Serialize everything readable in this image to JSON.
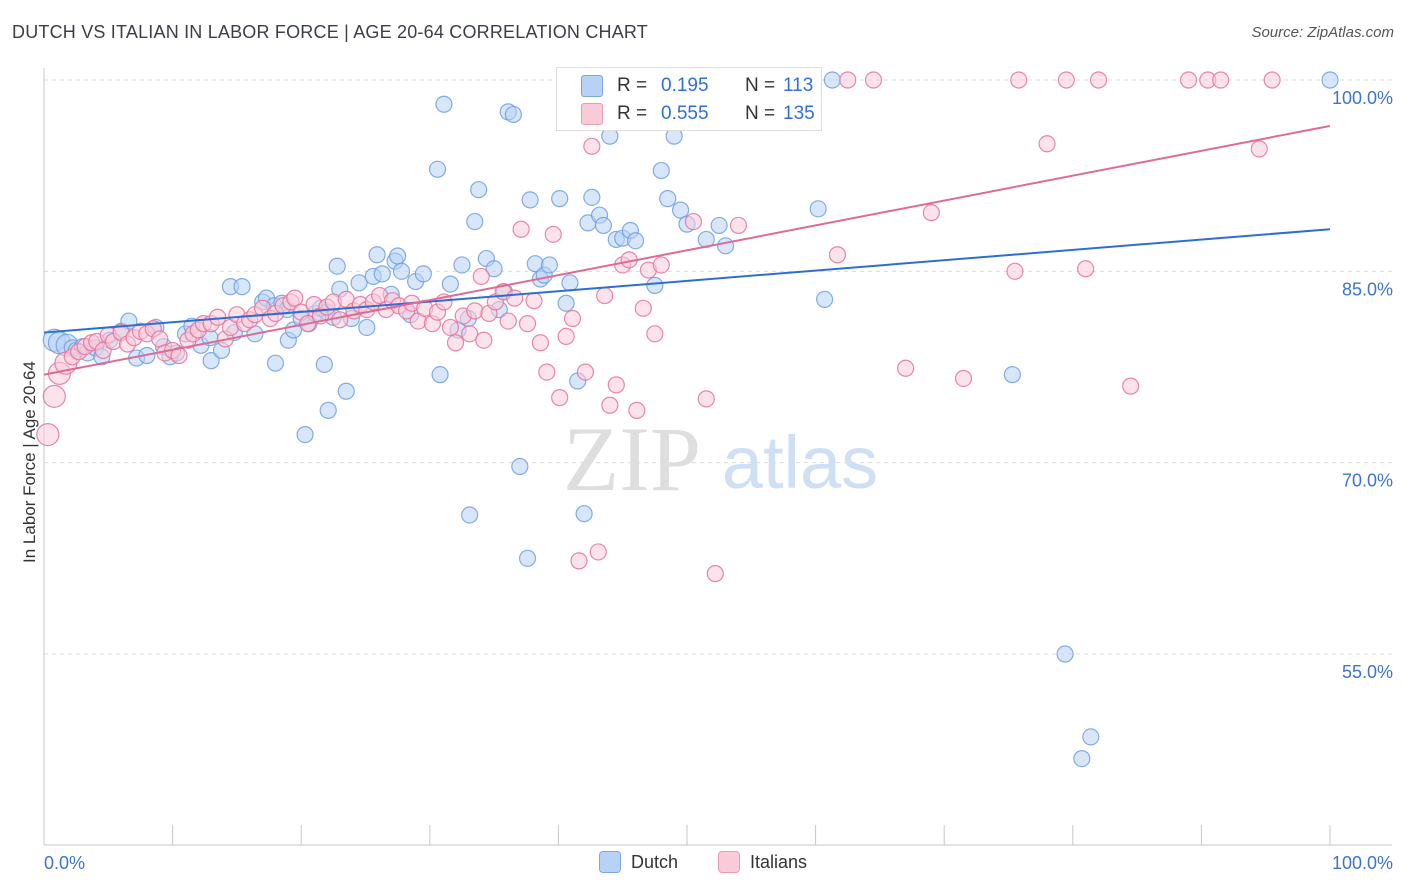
{
  "title": "DUTCH VS ITALIAN IN LABOR FORCE | AGE 20-64 CORRELATION CHART",
  "source": "Source: ZipAtlas.com",
  "watermark": {
    "zip": "ZIP",
    "atlas": "atlas"
  },
  "stats": [
    {
      "r_label": "R =",
      "r_value": "0.195",
      "n_label": "N =",
      "n_value": "113",
      "color": "#a8c6f0",
      "border": "#6e9fe0"
    },
    {
      "r_label": "R =",
      "r_value": "0.555",
      "n_label": "N =",
      "n_value": "135",
      "color": "#f7bfd0",
      "border": "#e88fac"
    }
  ],
  "legend": [
    {
      "label": "Dutch",
      "color": "#b8d2f5",
      "border": "#7aa8e6"
    },
    {
      "label": "Italians",
      "color": "#f9cbd9",
      "border": "#eb9db6"
    }
  ],
  "chart_data": {
    "type": "scatter",
    "title": "DUTCH VS ITALIAN IN LABOR FORCE | AGE 20-64 CORRELATION CHART",
    "xlabel": "",
    "ylabel": "In Labor Force | Age 20-64",
    "xlim": [
      0,
      100
    ],
    "ylim": [
      40,
      101
    ],
    "x_tick_labels": [
      "0.0%",
      "100.0%"
    ],
    "y_ticks": [
      55,
      70,
      85,
      100
    ],
    "y_tick_labels": [
      "55.0%",
      "70.0%",
      "85.0%",
      "100.0%"
    ],
    "grid": true,
    "legend_position": "bottom",
    "series": [
      {
        "name": "Dutch",
        "color": "#6e9fe0",
        "fill": "#b8d2f5",
        "trend": {
          "x": [
            0,
            100
          ],
          "y": [
            80.2,
            88.3
          ]
        },
        "points": [
          [
            0.8,
            79.6
          ],
          [
            1.2,
            79.4
          ],
          [
            1.8,
            79.2
          ],
          [
            2.2,
            79.0
          ],
          [
            2.5,
            78.8
          ],
          [
            3.0,
            79.1
          ],
          [
            3.4,
            78.6
          ],
          [
            4.0,
            79.0
          ],
          [
            4.5,
            78.3
          ],
          [
            5.1,
            79.6
          ],
          [
            6.0,
            80.3
          ],
          [
            6.6,
            81.1
          ],
          [
            7.2,
            78.2
          ],
          [
            8.0,
            78.4
          ],
          [
            8.7,
            80.6
          ],
          [
            9.3,
            79.1
          ],
          [
            9.8,
            78.3
          ],
          [
            10.3,
            78.6
          ],
          [
            11.0,
            80.1
          ],
          [
            11.5,
            80.7
          ],
          [
            12.2,
            79.2
          ],
          [
            12.9,
            79.8
          ],
          [
            13.0,
            78.0
          ],
          [
            13.8,
            78.8
          ],
          [
            14.5,
            83.8
          ],
          [
            14.8,
            80.2
          ],
          [
            15.4,
            83.8
          ],
          [
            16.4,
            80.1
          ],
          [
            17.0,
            82.6
          ],
          [
            17.3,
            82.9
          ],
          [
            17.9,
            82.3
          ],
          [
            18.0,
            77.8
          ],
          [
            18.5,
            82.5
          ],
          [
            18.9,
            82.0
          ],
          [
            19.0,
            79.6
          ],
          [
            19.4,
            80.4
          ],
          [
            20.0,
            81.3
          ],
          [
            20.3,
            72.2
          ],
          [
            20.6,
            80.9
          ],
          [
            21.1,
            81.7
          ],
          [
            22.0,
            81.8
          ],
          [
            21.5,
            82.1
          ],
          [
            21.8,
            77.7
          ],
          [
            22.1,
            74.1
          ],
          [
            22.8,
            85.4
          ],
          [
            22.5,
            81.4
          ],
          [
            23.0,
            83.6
          ],
          [
            23.5,
            75.6
          ],
          [
            23.9,
            81.3
          ],
          [
            24.5,
            84.1
          ],
          [
            25.1,
            80.6
          ],
          [
            25.6,
            84.6
          ],
          [
            25.9,
            86.3
          ],
          [
            26.3,
            84.8
          ],
          [
            27.0,
            83.2
          ],
          [
            27.3,
            85.8
          ],
          [
            27.5,
            86.2
          ],
          [
            27.8,
            85.0
          ],
          [
            28.5,
            81.6
          ],
          [
            28.9,
            84.2
          ],
          [
            29.5,
            84.8
          ],
          [
            30.6,
            93.0
          ],
          [
            30.8,
            76.9
          ],
          [
            31.1,
            98.1
          ],
          [
            31.6,
            84.0
          ],
          [
            32.2,
            80.4
          ],
          [
            32.5,
            85.5
          ],
          [
            33.0,
            81.3
          ],
          [
            33.1,
            65.9
          ],
          [
            33.5,
            88.9
          ],
          [
            33.8,
            91.4
          ],
          [
            34.4,
            86.0
          ],
          [
            35.0,
            85.2
          ],
          [
            35.4,
            82.0
          ],
          [
            35.8,
            83.4
          ],
          [
            36.1,
            97.5
          ],
          [
            36.5,
            97.3
          ],
          [
            37.0,
            69.7
          ],
          [
            37.6,
            62.5
          ],
          [
            37.8,
            90.6
          ],
          [
            38.2,
            85.6
          ],
          [
            38.6,
            84.4
          ],
          [
            38.9,
            84.7
          ],
          [
            39.3,
            85.5
          ],
          [
            40.1,
            90.7
          ],
          [
            40.6,
            82.5
          ],
          [
            40.9,
            84.1
          ],
          [
            41.5,
            76.4
          ],
          [
            42.0,
            66.0
          ],
          [
            42.3,
            88.8
          ],
          [
            42.6,
            90.8
          ],
          [
            43.2,
            89.4
          ],
          [
            43.5,
            88.6
          ],
          [
            44.0,
            95.6
          ],
          [
            44.5,
            87.5
          ],
          [
            45.0,
            87.6
          ],
          [
            45.6,
            88.2
          ],
          [
            46.0,
            87.4
          ],
          [
            47.5,
            83.9
          ],
          [
            48.0,
            92.9
          ],
          [
            48.5,
            90.7
          ],
          [
            49.0,
            95.6
          ],
          [
            49.5,
            89.8
          ],
          [
            50.0,
            88.7
          ],
          [
            51.5,
            87.5
          ],
          [
            52.5,
            88.6
          ],
          [
            53.0,
            87.0
          ],
          [
            60.2,
            89.9
          ],
          [
            60.7,
            82.8
          ],
          [
            61.3,
            100.0
          ],
          [
            75.3,
            76.9
          ],
          [
            79.4,
            55.0
          ],
          [
            81.4,
            48.5
          ],
          [
            80.7,
            46.8
          ],
          [
            100.0,
            100.0
          ]
        ]
      },
      {
        "name": "Italians",
        "color": "#e8719a",
        "fill": "#f9cbd9",
        "trend": {
          "x": [
            0,
            100
          ],
          "y": [
            76.9,
            96.4
          ]
        },
        "points": [
          [
            0.3,
            72.2
          ],
          [
            0.8,
            75.2
          ],
          [
            1.2,
            77.0
          ],
          [
            1.7,
            77.8
          ],
          [
            2.2,
            78.3
          ],
          [
            2.7,
            78.7
          ],
          [
            3.2,
            79.1
          ],
          [
            3.7,
            79.4
          ],
          [
            4.1,
            79.5
          ],
          [
            4.6,
            78.8
          ],
          [
            5.0,
            80.0
          ],
          [
            5.4,
            79.5
          ],
          [
            6.0,
            80.2
          ],
          [
            6.5,
            79.3
          ],
          [
            7.0,
            79.8
          ],
          [
            7.5,
            80.3
          ],
          [
            8.0,
            80.1
          ],
          [
            8.5,
            80.5
          ],
          [
            9.0,
            79.7
          ],
          [
            9.4,
            78.6
          ],
          [
            10.0,
            78.8
          ],
          [
            10.5,
            78.4
          ],
          [
            11.2,
            79.6
          ],
          [
            11.6,
            80.1
          ],
          [
            12.0,
            80.4
          ],
          [
            12.4,
            80.9
          ],
          [
            13.0,
            80.9
          ],
          [
            13.5,
            81.4
          ],
          [
            14.1,
            79.7
          ],
          [
            14.5,
            80.6
          ],
          [
            15.0,
            81.6
          ],
          [
            15.6,
            80.9
          ],
          [
            16.0,
            81.2
          ],
          [
            16.4,
            81.6
          ],
          [
            17.0,
            82.1
          ],
          [
            17.6,
            81.3
          ],
          [
            18.0,
            81.7
          ],
          [
            18.6,
            82.3
          ],
          [
            19.2,
            82.6
          ],
          [
            19.5,
            82.9
          ],
          [
            20.0,
            81.8
          ],
          [
            20.5,
            80.9
          ],
          [
            21.0,
            82.4
          ],
          [
            21.5,
            81.5
          ],
          [
            22.0,
            82.2
          ],
          [
            22.5,
            82.6
          ],
          [
            23.0,
            81.2
          ],
          [
            23.5,
            82.8
          ],
          [
            24.1,
            81.9
          ],
          [
            24.6,
            82.4
          ],
          [
            25.1,
            82.0
          ],
          [
            25.6,
            82.6
          ],
          [
            26.1,
            83.1
          ],
          [
            26.6,
            82.0
          ],
          [
            27.1,
            82.7
          ],
          [
            27.6,
            82.3
          ],
          [
            28.2,
            81.9
          ],
          [
            28.6,
            82.5
          ],
          [
            29.1,
            81.1
          ],
          [
            29.6,
            82.1
          ],
          [
            30.2,
            80.9
          ],
          [
            30.6,
            81.8
          ],
          [
            31.1,
            82.6
          ],
          [
            31.6,
            80.6
          ],
          [
            32.0,
            79.4
          ],
          [
            32.6,
            81.5
          ],
          [
            33.1,
            80.1
          ],
          [
            33.5,
            81.9
          ],
          [
            34.0,
            84.6
          ],
          [
            34.2,
            79.6
          ],
          [
            34.6,
            81.7
          ],
          [
            35.1,
            82.6
          ],
          [
            35.7,
            83.4
          ],
          [
            36.1,
            81.1
          ],
          [
            36.6,
            82.9
          ],
          [
            37.1,
            88.3
          ],
          [
            37.6,
            80.9
          ],
          [
            38.1,
            82.7
          ],
          [
            38.6,
            79.4
          ],
          [
            39.1,
            77.1
          ],
          [
            39.6,
            87.9
          ],
          [
            40.1,
            75.1
          ],
          [
            40.6,
            79.9
          ],
          [
            41.1,
            81.3
          ],
          [
            41.6,
            62.3
          ],
          [
            42.1,
            77.1
          ],
          [
            42.6,
            94.8
          ],
          [
            43.1,
            63.0
          ],
          [
            43.6,
            83.1
          ],
          [
            44.0,
            74.5
          ],
          [
            44.5,
            76.1
          ],
          [
            45.0,
            85.5
          ],
          [
            45.5,
            85.9
          ],
          [
            46.1,
            74.1
          ],
          [
            46.6,
            82.1
          ],
          [
            47.0,
            85.1
          ],
          [
            47.5,
            80.1
          ],
          [
            48.0,
            85.5
          ],
          [
            48.6,
            100.0
          ],
          [
            49.5,
            100.0
          ],
          [
            50.5,
            88.9
          ],
          [
            51.5,
            75.0
          ],
          [
            52.2,
            61.3
          ],
          [
            52.5,
            100.0
          ],
          [
            54.5,
            100.0
          ],
          [
            54.0,
            88.6
          ],
          [
            56.0,
            100.0
          ],
          [
            58.0,
            100.0
          ],
          [
            61.7,
            86.3
          ],
          [
            62.5,
            100.0
          ],
          [
            64.5,
            100.0
          ],
          [
            67.0,
            77.4
          ],
          [
            69.0,
            89.6
          ],
          [
            71.5,
            76.6
          ],
          [
            75.5,
            85.0
          ],
          [
            75.8,
            100.0
          ],
          [
            78.0,
            95.0
          ],
          [
            79.5,
            100.0
          ],
          [
            81.0,
            85.2
          ],
          [
            82.0,
            100.0
          ],
          [
            84.5,
            76.0
          ],
          [
            89.0,
            100.0
          ],
          [
            90.5,
            100.0
          ],
          [
            91.5,
            100.0
          ],
          [
            94.5,
            94.6
          ],
          [
            95.5,
            100.0
          ]
        ]
      }
    ]
  }
}
